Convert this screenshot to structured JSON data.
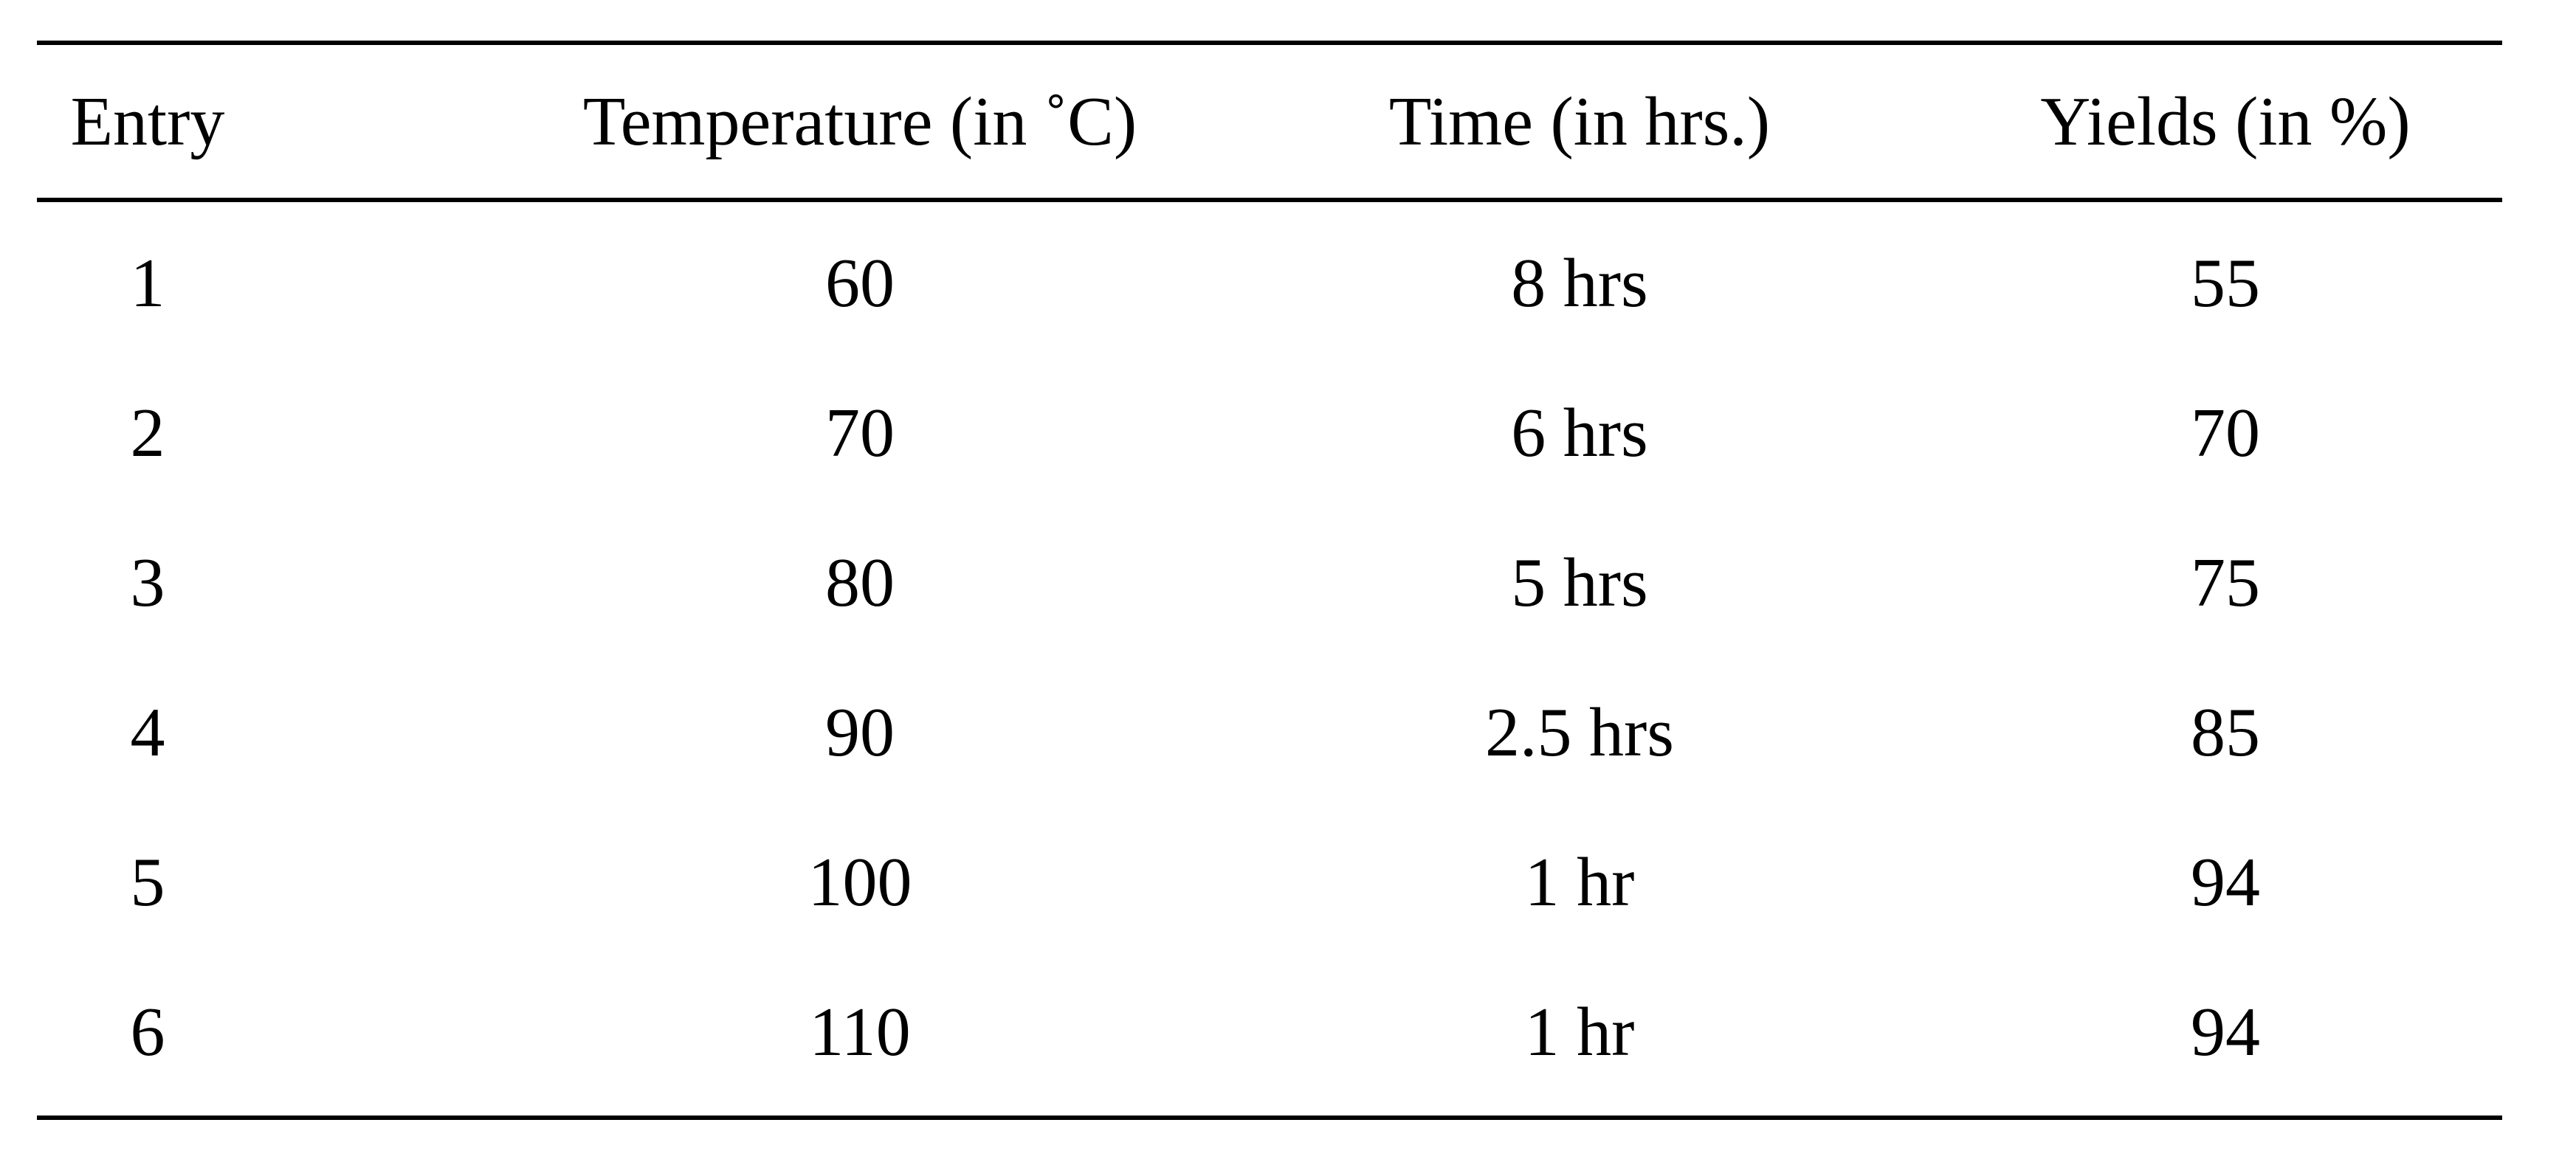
{
  "table": {
    "columns": [
      "Entry",
      "Temperature (in ˚C)",
      "Time (in hrs.)",
      "Yields (in %)"
    ],
    "rows": [
      [
        "1",
        "60",
        "8 hrs",
        "55"
      ],
      [
        "2",
        "70",
        "6 hrs",
        "70"
      ],
      [
        "3",
        "80",
        "5 hrs",
        "75"
      ],
      [
        "4",
        "90",
        "2.5 hrs",
        "85"
      ],
      [
        "5",
        "100",
        "1 hr",
        "94"
      ],
      [
        "6",
        "110",
        "1 hr",
        "94"
      ]
    ]
  }
}
